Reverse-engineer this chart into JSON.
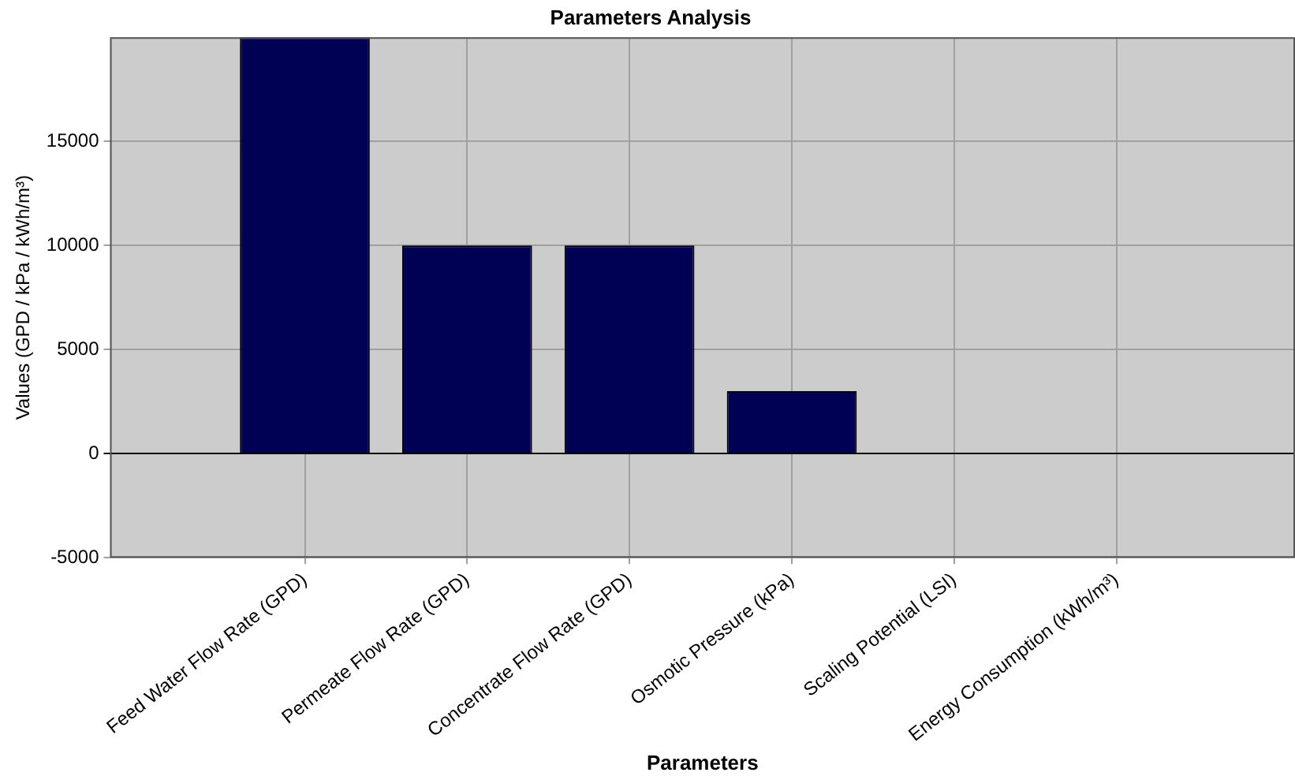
{
  "chart_data": {
    "type": "bar",
    "title": "Parameters Analysis",
    "xlabel": "Parameters",
    "ylabel": "Values (GPD / kPa / kWh/m³)",
    "categories": [
      "Feed Water Flow Rate (GPD)",
      "Permeate Flow Rate (GPD)",
      "Concentrate Flow Rate (GPD)",
      "Osmotic Pressure (kPa)",
      "Scaling Potential (LSI)",
      "Energy Consumption (kWh/m³)"
    ],
    "values": [
      20000,
      10000,
      10000,
      3000,
      0,
      0
    ],
    "color": "#000055",
    "ylim": [
      -5000,
      20000
    ],
    "yticks": [
      -5000,
      0,
      5000,
      10000,
      15000
    ],
    "grid": true,
    "legend": false
  }
}
